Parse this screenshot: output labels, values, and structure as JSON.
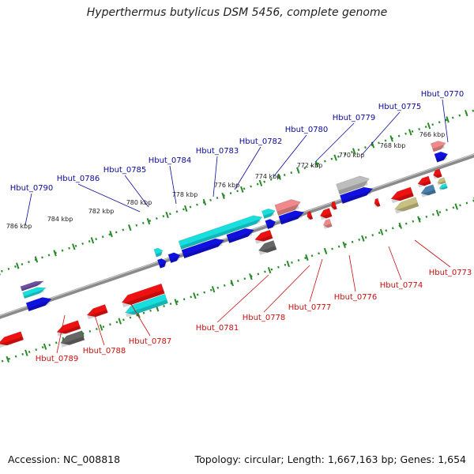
{
  "title": "Hyperthermus butylicus DSM 5456, complete genome",
  "footer": {
    "accession": "Accession: NC_008818",
    "topology": "Topology: circular; Length: 1,667,163 bp; Genes: 1,654"
  },
  "colors": {
    "axis": "#8a8a8a",
    "dots": "#2a8a2a",
    "top_label": "#0a0a9a",
    "bottom_label": "#c81010",
    "blue": "#1010e0",
    "cyan": "#18dede",
    "red": "#ee1111",
    "pink": "#f08a8a",
    "gray": "#bdbdbd",
    "darkgray": "#666666",
    "olive": "#c8c080",
    "steel": "#4a80b0",
    "purple": "#7050a0"
  },
  "ticks": [
    "766 kbp",
    "768 kbp",
    "770 kbp",
    "772 kbp",
    "774 kbp",
    "776 kbp",
    "778 kbp",
    "780 kbp",
    "782 kbp",
    "784 kbp",
    "786 kbp"
  ],
  "top_labels": [
    "Hbut_0770",
    "Hbut_0775",
    "Hbut_0779",
    "Hbut_0780",
    "Hbut_0782",
    "Hbut_0783",
    "Hbut_0784",
    "Hbut_0785",
    "Hbut_0786",
    "Hbut_0790"
  ],
  "bottom_labels": [
    "Hbut_0773",
    "Hbut_0774",
    "Hbut_0776",
    "Hbut_0777",
    "Hbut_0778",
    "Hbut_0781",
    "Hbut_0787",
    "Hbut_0788",
    "Hbut_0789"
  ]
}
